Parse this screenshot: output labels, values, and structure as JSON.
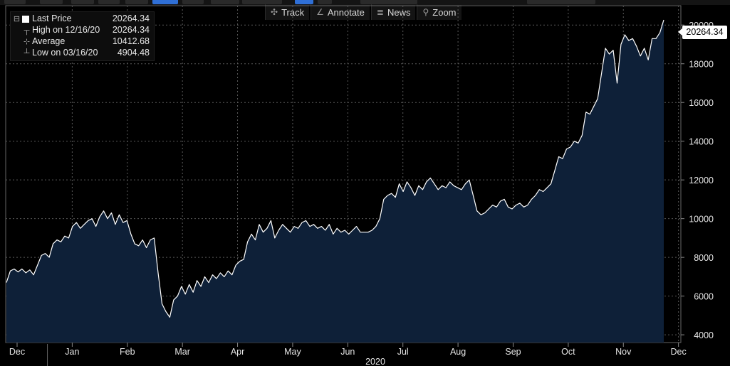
{
  "toolbar": {
    "track_label": "Track",
    "annotate_label": "Annotate",
    "news_label": "News",
    "zoom_label": "Zoom"
  },
  "legend": {
    "last_price_label": "Last Price",
    "last_price_value": "20264.34",
    "high_label": "High on 12/16/20",
    "high_value": "20264.34",
    "average_label": "Average",
    "average_value": "10412.68",
    "low_label": "Low on 03/16/20",
    "low_value": "4904.48"
  },
  "last_value_tag": "20264.34",
  "colors": {
    "background": "#000000",
    "area_fill": "#0e2038",
    "line": "#ffffff",
    "grid": "#5a5a5a"
  },
  "chart_data": {
    "type": "area",
    "year_label": "2020",
    "x_tick_labels": [
      "Dec",
      "Jan",
      "Feb",
      "Mar",
      "Apr",
      "May",
      "Jun",
      "Jul",
      "Aug",
      "Sep",
      "Oct",
      "Nov",
      "Dec"
    ],
    "y_tick_labels": [
      "4000",
      "6000",
      "8000",
      "10000",
      "12000",
      "14000",
      "16000",
      "18000",
      "20000"
    ],
    "ylim": [
      3600,
      21000
    ],
    "grid": true,
    "series": [
      {
        "values": [
          6700,
          7300,
          7400,
          7250,
          7400,
          7200,
          7350,
          7100,
          7600,
          8100,
          8200,
          8000,
          8700,
          8900,
          8800,
          9100,
          9000,
          9600,
          9800,
          9500,
          9700,
          9900,
          10000,
          9600,
          10100,
          10400,
          10000,
          10300,
          9700,
          10200,
          9800,
          9900,
          9200,
          8700,
          8600,
          8900,
          8500,
          8900,
          9000,
          7200,
          5600,
          5200,
          4905,
          5800,
          6000,
          6500,
          6100,
          6600,
          6200,
          6800,
          6500,
          7000,
          6700,
          7100,
          6900,
          7200,
          7000,
          7300,
          7100,
          7600,
          7800,
          7900,
          8800,
          9200,
          8900,
          9700,
          9300,
          9500,
          9900,
          9000,
          9400,
          9700,
          9500,
          9300,
          9600,
          9500,
          9800,
          9900,
          9600,
          9700,
          9500,
          9600,
          9400,
          9700,
          9200,
          9500,
          9300,
          9400,
          9200,
          9400,
          9600,
          9300,
          9300,
          9300,
          9400,
          9600,
          10000,
          11000,
          11200,
          11300,
          11100,
          11800,
          11400,
          11900,
          11600,
          11200,
          11700,
          11500,
          11900,
          12100,
          11800,
          11500,
          11700,
          11600,
          11900,
          11700,
          11600,
          11500,
          11800,
          12000,
          11200,
          10400,
          10200,
          10300,
          10500,
          10700,
          10600,
          10900,
          11000,
          10600,
          10500,
          10700,
          10800,
          10600,
          10700,
          11000,
          11200,
          11500,
          11400,
          11600,
          11800,
          12500,
          13200,
          13100,
          13600,
          13700,
          14000,
          13900,
          14300,
          15500,
          15400,
          15800,
          16200,
          17500,
          18800,
          18500,
          18700,
          17000,
          19000,
          19500,
          19200,
          19300,
          18900,
          18400,
          18800,
          18200,
          19300,
          19300,
          19600,
          20264
        ]
      }
    ]
  }
}
